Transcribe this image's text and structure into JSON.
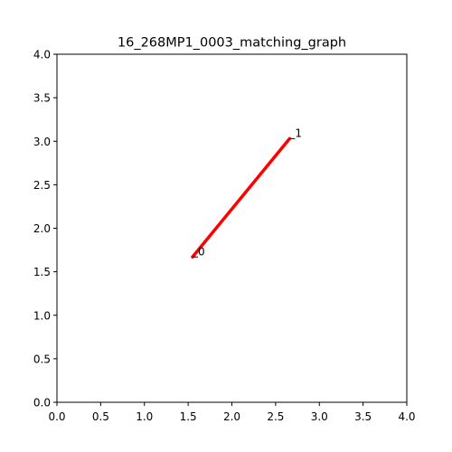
{
  "chart_data": {
    "type": "line",
    "title": "16_268MP1_0003_matching_graph",
    "xlabel": "",
    "ylabel": "",
    "xlim": [
      0.0,
      4.0
    ],
    "ylim": [
      0.0,
      4.0
    ],
    "xticks": [
      "0.0",
      "0.5",
      "1.0",
      "1.5",
      "2.0",
      "2.5",
      "3.0",
      "3.5",
      "4.0"
    ],
    "yticks": [
      "0.0",
      "0.5",
      "1.0",
      "1.5",
      "2.0",
      "2.5",
      "3.0",
      "3.5",
      "4.0"
    ],
    "grid": false,
    "nodes": [
      {
        "label": "0",
        "x": 1.55,
        "y": 1.67
      },
      {
        "label": "1",
        "x": 2.66,
        "y": 3.03
      }
    ],
    "edges": [
      {
        "from": 0,
        "to": 1,
        "color": "#ff0000"
      }
    ]
  }
}
